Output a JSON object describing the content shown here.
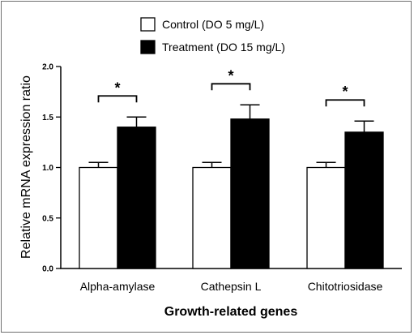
{
  "chart_data": {
    "type": "bar",
    "title": "",
    "xlabel": "Growth-related genes",
    "ylabel": "Relative mRNA expression ratio",
    "ylim": [
      0,
      2.0
    ],
    "yticks": [
      "0.0",
      "0.5",
      "1.0",
      "1.5",
      "2.0"
    ],
    "categories": [
      "Alpha-amylase",
      "Cathepsin L",
      "Chitotriosidase"
    ],
    "series": [
      {
        "name": "Control (DO 5 mg/L)",
        "color": "#ffffff",
        "values": [
          1.0,
          1.0,
          1.0
        ],
        "errors": [
          0.05,
          0.05,
          0.05
        ]
      },
      {
        "name": "Treatment (DO 15 mg/L)",
        "color": "#000000",
        "values": [
          1.4,
          1.48,
          1.35
        ],
        "errors": [
          0.1,
          0.14,
          0.11
        ]
      }
    ],
    "significance": {
      "marker": "*",
      "pairs": [
        0,
        1,
        2
      ]
    },
    "legend_position": "top-center"
  }
}
